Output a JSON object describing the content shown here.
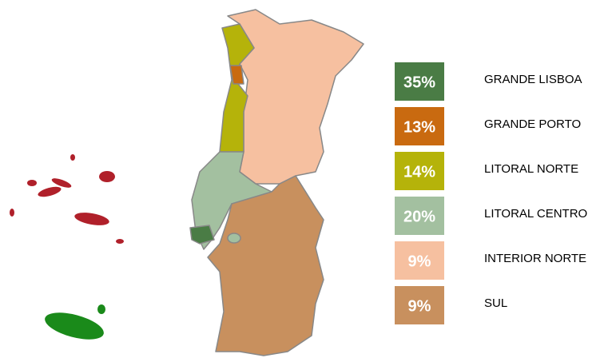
{
  "legend": {
    "items": [
      {
        "label": "35%",
        "name": "GRANDE LISBOA",
        "color": "#4a7c45"
      },
      {
        "label": "13%",
        "name": "GRANDE PORTO",
        "color": "#c96a10"
      },
      {
        "label": "14%",
        "name": "LITORAL NORTE",
        "color": "#b5b30a"
      },
      {
        "label": "20%",
        "name": "LITORAL CENTRO",
        "color": "#a3c0a0"
      },
      {
        "label": "9%",
        "name": "INTERIOR NORTE",
        "color": "#f6c0a0"
      },
      {
        "label": "9%",
        "name": "SUL",
        "color": "#c8905e"
      }
    ]
  }
}
